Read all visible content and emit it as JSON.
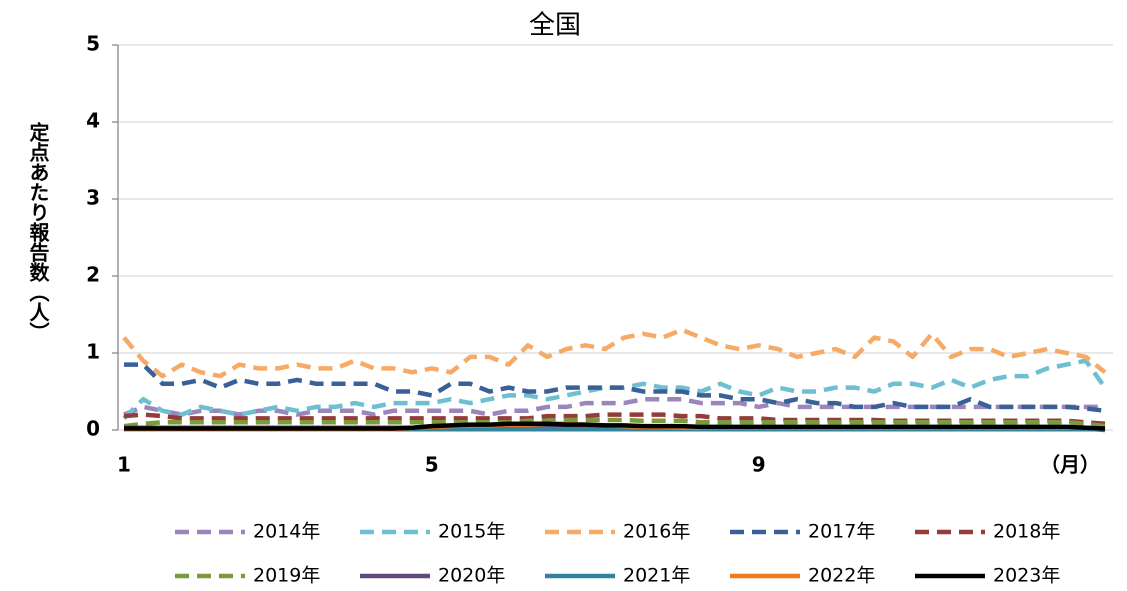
{
  "chart_data": {
    "type": "line",
    "title": "全国",
    "y_label": "定点あたり報告数（人）",
    "x_label": "（月）",
    "categories": [
      "1",
      null,
      null,
      null,
      null,
      null,
      null,
      null,
      null,
      null,
      null,
      null,
      null,
      null,
      null,
      null,
      "5",
      null,
      null,
      null,
      null,
      null,
      null,
      null,
      null,
      null,
      null,
      null,
      null,
      null,
      null,
      null,
      null,
      "9",
      null,
      null,
      null,
      null,
      null,
      null,
      null,
      null,
      null,
      null,
      null,
      null,
      null,
      null,
      null,
      null,
      null,
      null
    ],
    "ylim": [
      0,
      5
    ],
    "yticks": [
      0,
      1,
      2,
      3,
      4,
      5
    ],
    "grid": true,
    "legend": "bottom",
    "series": [
      {
        "name": "2014年",
        "color": "#9a86bd",
        "style": "dashed",
        "values": [
          0.2,
          0.3,
          0.25,
          0.2,
          0.25,
          0.25,
          0.2,
          0.25,
          0.25,
          0.2,
          0.25,
          0.25,
          0.25,
          0.2,
          0.25,
          0.25,
          0.25,
          0.25,
          0.25,
          0.2,
          0.25,
          0.25,
          0.3,
          0.3,
          0.35,
          0.35,
          0.35,
          0.4,
          0.4,
          0.4,
          0.35,
          0.35,
          0.35,
          0.3,
          0.35,
          0.3,
          0.3,
          0.3,
          0.3,
          0.3,
          0.3,
          0.3,
          0.3,
          0.3,
          0.3,
          0.3,
          0.3,
          0.3,
          0.3,
          0.3,
          0.3,
          0.3
        ]
      },
      {
        "name": "2015年",
        "color": "#6fbfd2",
        "style": "dashed",
        "values": [
          0.15,
          0.4,
          0.25,
          0.2,
          0.3,
          0.25,
          0.2,
          0.25,
          0.3,
          0.25,
          0.3,
          0.3,
          0.35,
          0.3,
          0.35,
          0.35,
          0.35,
          0.4,
          0.35,
          0.4,
          0.45,
          0.45,
          0.4,
          0.45,
          0.5,
          0.55,
          0.55,
          0.6,
          0.55,
          0.55,
          0.5,
          0.6,
          0.5,
          0.45,
          0.55,
          0.5,
          0.5,
          0.55,
          0.55,
          0.5,
          0.6,
          0.6,
          0.55,
          0.65,
          0.55,
          0.65,
          0.7,
          0.7,
          0.8,
          0.85,
          0.9,
          0.55
        ]
      },
      {
        "name": "2016年",
        "color": "#f6aa66",
        "style": "dashed",
        "values": [
          1.2,
          0.9,
          0.7,
          0.85,
          0.75,
          0.7,
          0.85,
          0.8,
          0.8,
          0.85,
          0.8,
          0.8,
          0.9,
          0.8,
          0.8,
          0.75,
          0.8,
          0.75,
          0.95,
          0.95,
          0.85,
          1.1,
          0.95,
          1.05,
          1.1,
          1.05,
          1.2,
          1.25,
          1.2,
          1.3,
          1.2,
          1.1,
          1.05,
          1.1,
          1.05,
          0.95,
          1.0,
          1.05,
          0.95,
          1.2,
          1.15,
          0.95,
          1.25,
          0.95,
          1.05,
          1.05,
          0.95,
          1.0,
          1.05,
          1.0,
          0.95,
          0.75
        ]
      },
      {
        "name": "2017年",
        "color": "#3b6098",
        "style": "dashed",
        "values": [
          0.85,
          0.85,
          0.6,
          0.6,
          0.65,
          0.55,
          0.65,
          0.6,
          0.6,
          0.65,
          0.6,
          0.6,
          0.6,
          0.6,
          0.5,
          0.5,
          0.45,
          0.6,
          0.6,
          0.5,
          0.55,
          0.5,
          0.5,
          0.55,
          0.55,
          0.55,
          0.55,
          0.5,
          0.5,
          0.5,
          0.45,
          0.45,
          0.4,
          0.4,
          0.35,
          0.4,
          0.35,
          0.35,
          0.3,
          0.3,
          0.35,
          0.3,
          0.3,
          0.3,
          0.4,
          0.3,
          0.3,
          0.3,
          0.3,
          0.3,
          0.28,
          0.25
        ]
      },
      {
        "name": "2018年",
        "color": "#963b3b",
        "style": "dashed",
        "values": [
          0.18,
          0.2,
          0.18,
          0.15,
          0.15,
          0.15,
          0.15,
          0.15,
          0.15,
          0.15,
          0.15,
          0.15,
          0.15,
          0.15,
          0.15,
          0.15,
          0.15,
          0.15,
          0.15,
          0.15,
          0.15,
          0.15,
          0.18,
          0.18,
          0.18,
          0.2,
          0.2,
          0.2,
          0.2,
          0.18,
          0.18,
          0.15,
          0.15,
          0.15,
          0.13,
          0.13,
          0.13,
          0.13,
          0.13,
          0.13,
          0.12,
          0.12,
          0.12,
          0.12,
          0.12,
          0.12,
          0.12,
          0.12,
          0.12,
          0.12,
          0.1,
          0.08
        ]
      },
      {
        "name": "2019年",
        "color": "#7c9b3d",
        "style": "dashed",
        "values": [
          0.05,
          0.08,
          0.1,
          0.1,
          0.1,
          0.1,
          0.1,
          0.1,
          0.1,
          0.1,
          0.1,
          0.1,
          0.1,
          0.1,
          0.1,
          0.1,
          0.1,
          0.1,
          0.1,
          0.1,
          0.1,
          0.12,
          0.12,
          0.13,
          0.13,
          0.13,
          0.13,
          0.12,
          0.12,
          0.12,
          0.1,
          0.1,
          0.1,
          0.1,
          0.1,
          0.1,
          0.1,
          0.1,
          0.1,
          0.1,
          0.1,
          0.1,
          0.1,
          0.1,
          0.1,
          0.1,
          0.1,
          0.1,
          0.1,
          0.1,
          0.08,
          0.05
        ]
      },
      {
        "name": "2020年",
        "color": "#604a7c",
        "style": "solid",
        "values": [
          0.03,
          0.03,
          0.03,
          0.03,
          0.03,
          0.03,
          0.03,
          0.03,
          0.03,
          0.03,
          0.03,
          0.03,
          0.03,
          0.03,
          0.03,
          0.03,
          0.03,
          0.03,
          0.03,
          0.03,
          0.03,
          0.03,
          0.03,
          0.03,
          0.03,
          0.03,
          0.03,
          0.03,
          0.03,
          0.03,
          0.03,
          0.03,
          0.03,
          0.03,
          0.03,
          0.03,
          0.03,
          0.03,
          0.03,
          0.03,
          0.03,
          0.03,
          0.03,
          0.03,
          0.03,
          0.03,
          0.03,
          0.03,
          0.03,
          0.03,
          0.02,
          0.0
        ]
      },
      {
        "name": "2021年",
        "color": "#31849c",
        "style": "solid",
        "values": [
          0.01,
          0.01,
          0.01,
          0.01,
          0.01,
          0.01,
          0.01,
          0.01,
          0.01,
          0.01,
          0.01,
          0.01,
          0.01,
          0.01,
          0.01,
          0.01,
          0.01,
          0.01,
          0.01,
          0.01,
          0.01,
          0.01,
          0.01,
          0.01,
          0.01,
          0.01,
          0.01,
          0.01,
          0.01,
          0.01,
          0.01,
          0.01,
          0.01,
          0.01,
          0.01,
          0.01,
          0.01,
          0.01,
          0.01,
          0.01,
          0.01,
          0.01,
          0.01,
          0.01,
          0.01,
          0.01,
          0.01,
          0.01,
          0.01,
          0.01,
          0.01,
          0.01
        ]
      },
      {
        "name": "2022年",
        "color": "#f17a1a",
        "style": "solid",
        "values": [
          0.01,
          0.01,
          0.01,
          0.01,
          0.01,
          0.01,
          0.01,
          0.01,
          0.01,
          0.01,
          0.01,
          0.01,
          0.01,
          0.01,
          0.01,
          0.03,
          0.04,
          0.05,
          0.06,
          0.06,
          0.07,
          0.07,
          0.08,
          0.08,
          0.07,
          0.06,
          0.05,
          0.04,
          0.04,
          0.03,
          0.03,
          0.03,
          0.03,
          0.03,
          0.03,
          0.03,
          0.03,
          0.03,
          0.03,
          0.03,
          0.03,
          0.03,
          0.03,
          0.03,
          0.03,
          0.03,
          0.03,
          0.03,
          0.03,
          0.03,
          0.03,
          0.03
        ]
      },
      {
        "name": "2023年",
        "color": "#000000",
        "style": "solid",
        "values": [
          0.02,
          0.02,
          0.02,
          0.02,
          0.02,
          0.02,
          0.02,
          0.02,
          0.02,
          0.02,
          0.02,
          0.02,
          0.02,
          0.02,
          0.02,
          0.03,
          0.05,
          0.06,
          0.07,
          0.07,
          0.08,
          0.08,
          0.08,
          0.07,
          0.07,
          0.06,
          0.06,
          0.05,
          0.05,
          0.05,
          0.04,
          0.04,
          0.04,
          0.04,
          0.04,
          0.04,
          0.04,
          0.04,
          0.04,
          0.04,
          0.04,
          0.04,
          0.04,
          0.04,
          0.04,
          0.04,
          0.04,
          0.04,
          0.04,
          0.04,
          0.03,
          0.02
        ]
      }
    ]
  }
}
